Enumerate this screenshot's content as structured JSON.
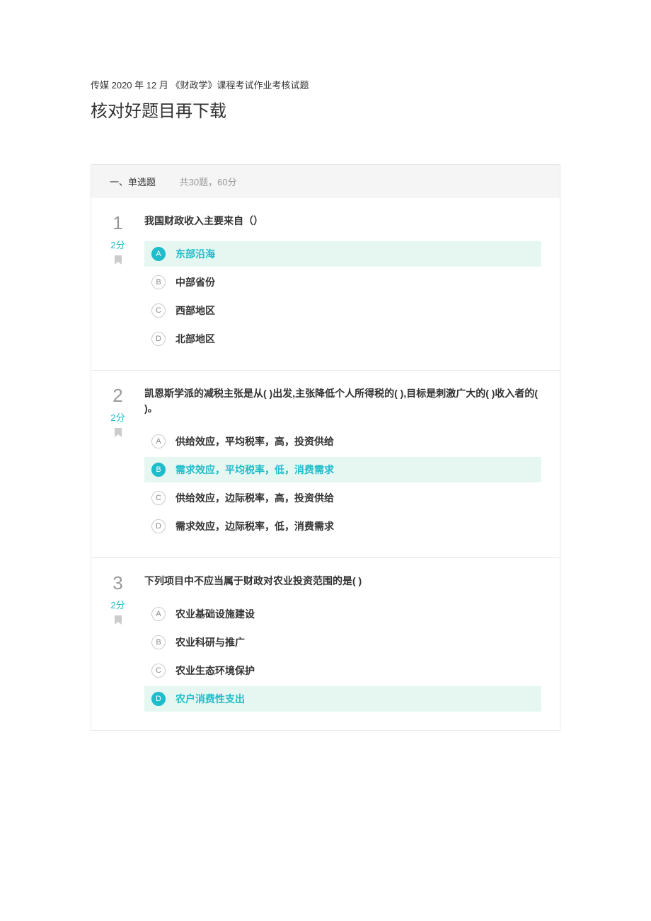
{
  "header": {
    "subtitle": "传媒 2020 年 12 月 《财政学》课程考试作业考核试题",
    "main_title": "核对好题目再下载"
  },
  "section": {
    "type": "一、单选题",
    "count": "共30题，60分"
  },
  "questions": [
    {
      "number": "1",
      "score": "2分",
      "text": "我国财政收入主要来自（）",
      "options": [
        {
          "letter": "A",
          "text": "东部沿海",
          "selected": true
        },
        {
          "letter": "B",
          "text": "中部省份",
          "selected": false
        },
        {
          "letter": "C",
          "text": "西部地区",
          "selected": false
        },
        {
          "letter": "D",
          "text": "北部地区",
          "selected": false
        }
      ]
    },
    {
      "number": "2",
      "score": "2分",
      "text": "凯恩斯学派的减税主张是从( )出发,主张降低个人所得税的( ),目标是刺激广大的( )收入者的( )。",
      "options": [
        {
          "letter": "A",
          "text": "供给效应，平均税率，高，投资供给",
          "selected": false
        },
        {
          "letter": "B",
          "text": "需求效应，平均税率，低，消费需求",
          "selected": true
        },
        {
          "letter": "C",
          "text": "供给效应，边际税率，高，投资供给",
          "selected": false
        },
        {
          "letter": "D",
          "text": "需求效应，边际税率，低，消费需求",
          "selected": false
        }
      ]
    },
    {
      "number": "3",
      "score": "2分",
      "text": "下列项目中不应当属于财政对农业投资范围的是( )",
      "options": [
        {
          "letter": "A",
          "text": "农业基础设施建设",
          "selected": false
        },
        {
          "letter": "B",
          "text": "农业科研与推广",
          "selected": false
        },
        {
          "letter": "C",
          "text": "农业生态环境保护",
          "selected": false
        },
        {
          "letter": "D",
          "text": "农户消费性支出",
          "selected": true
        }
      ]
    }
  ],
  "colors": {
    "accent": "#1fbcca",
    "selected_bg": "#e6f7f2",
    "border": "#e8e8e8",
    "section_bg": "#f5f5f5",
    "text_primary": "#333333",
    "text_secondary": "#666666",
    "text_muted": "#999999",
    "bookmark": "#cccccc"
  }
}
